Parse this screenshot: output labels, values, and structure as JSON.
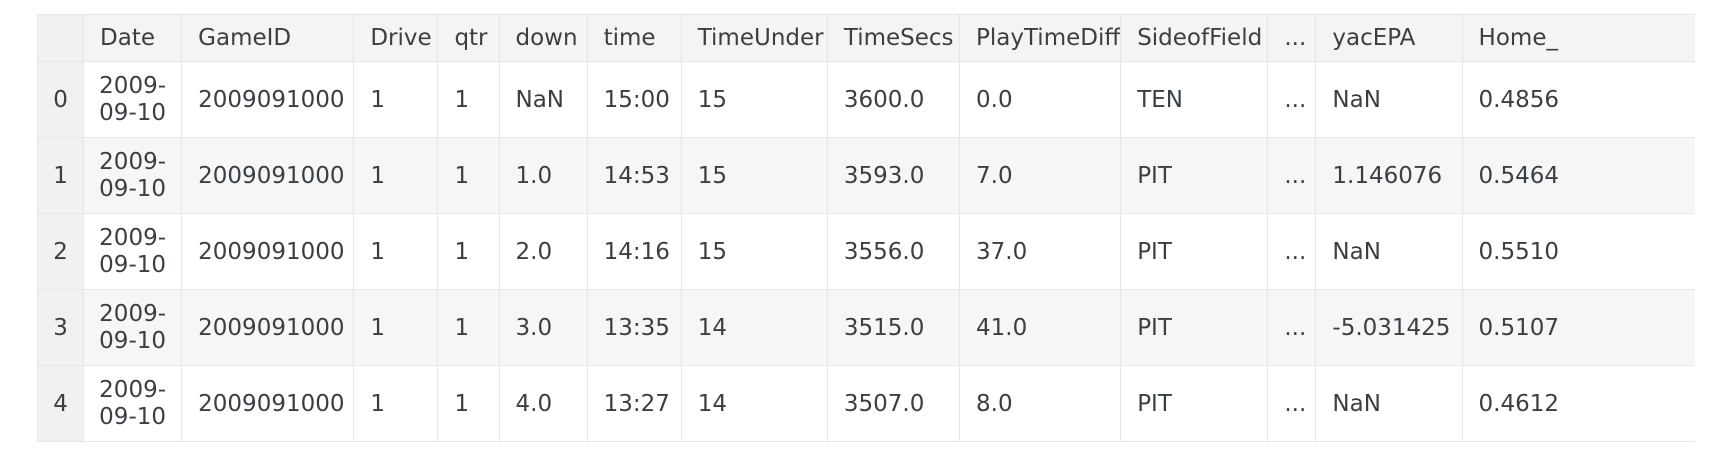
{
  "table": {
    "columns": [
      "",
      "Date",
      "GameID",
      "Drive",
      "qtr",
      "down",
      "time",
      "TimeUnder",
      "TimeSecs",
      "PlayTimeDiff",
      "SideofField",
      "...",
      "yacEPA",
      "Home_"
    ],
    "rows": [
      {
        "index": "0",
        "date_l1": "2009-",
        "date_l2": "09-10",
        "cells": [
          "2009091000",
          "1",
          "1",
          "NaN",
          "15:00",
          "15",
          "3600.0",
          "0.0",
          "TEN",
          "...",
          "NaN",
          "0.4856"
        ]
      },
      {
        "index": "1",
        "date_l1": "2009-",
        "date_l2": "09-10",
        "cells": [
          "2009091000",
          "1",
          "1",
          "1.0",
          "14:53",
          "15",
          "3593.0",
          "7.0",
          "PIT",
          "...",
          "1.146076",
          "0.5464"
        ]
      },
      {
        "index": "2",
        "date_l1": "2009-",
        "date_l2": "09-10",
        "cells": [
          "2009091000",
          "1",
          "1",
          "2.0",
          "14:16",
          "15",
          "3556.0",
          "37.0",
          "PIT",
          "...",
          "NaN",
          "0.5510"
        ]
      },
      {
        "index": "3",
        "date_l1": "2009-",
        "date_l2": "09-10",
        "cells": [
          "2009091000",
          "1",
          "1",
          "3.0",
          "13:35",
          "14",
          "3515.0",
          "41.0",
          "PIT",
          "...",
          "-5.031425",
          "0.5107"
        ]
      },
      {
        "index": "4",
        "date_l1": "2009-",
        "date_l2": "09-10",
        "cells": [
          "2009091000",
          "1",
          "1",
          "4.0",
          "13:27",
          "14",
          "3507.0",
          "8.0",
          "PIT",
          "...",
          "NaN",
          "0.4612"
        ]
      }
    ]
  }
}
